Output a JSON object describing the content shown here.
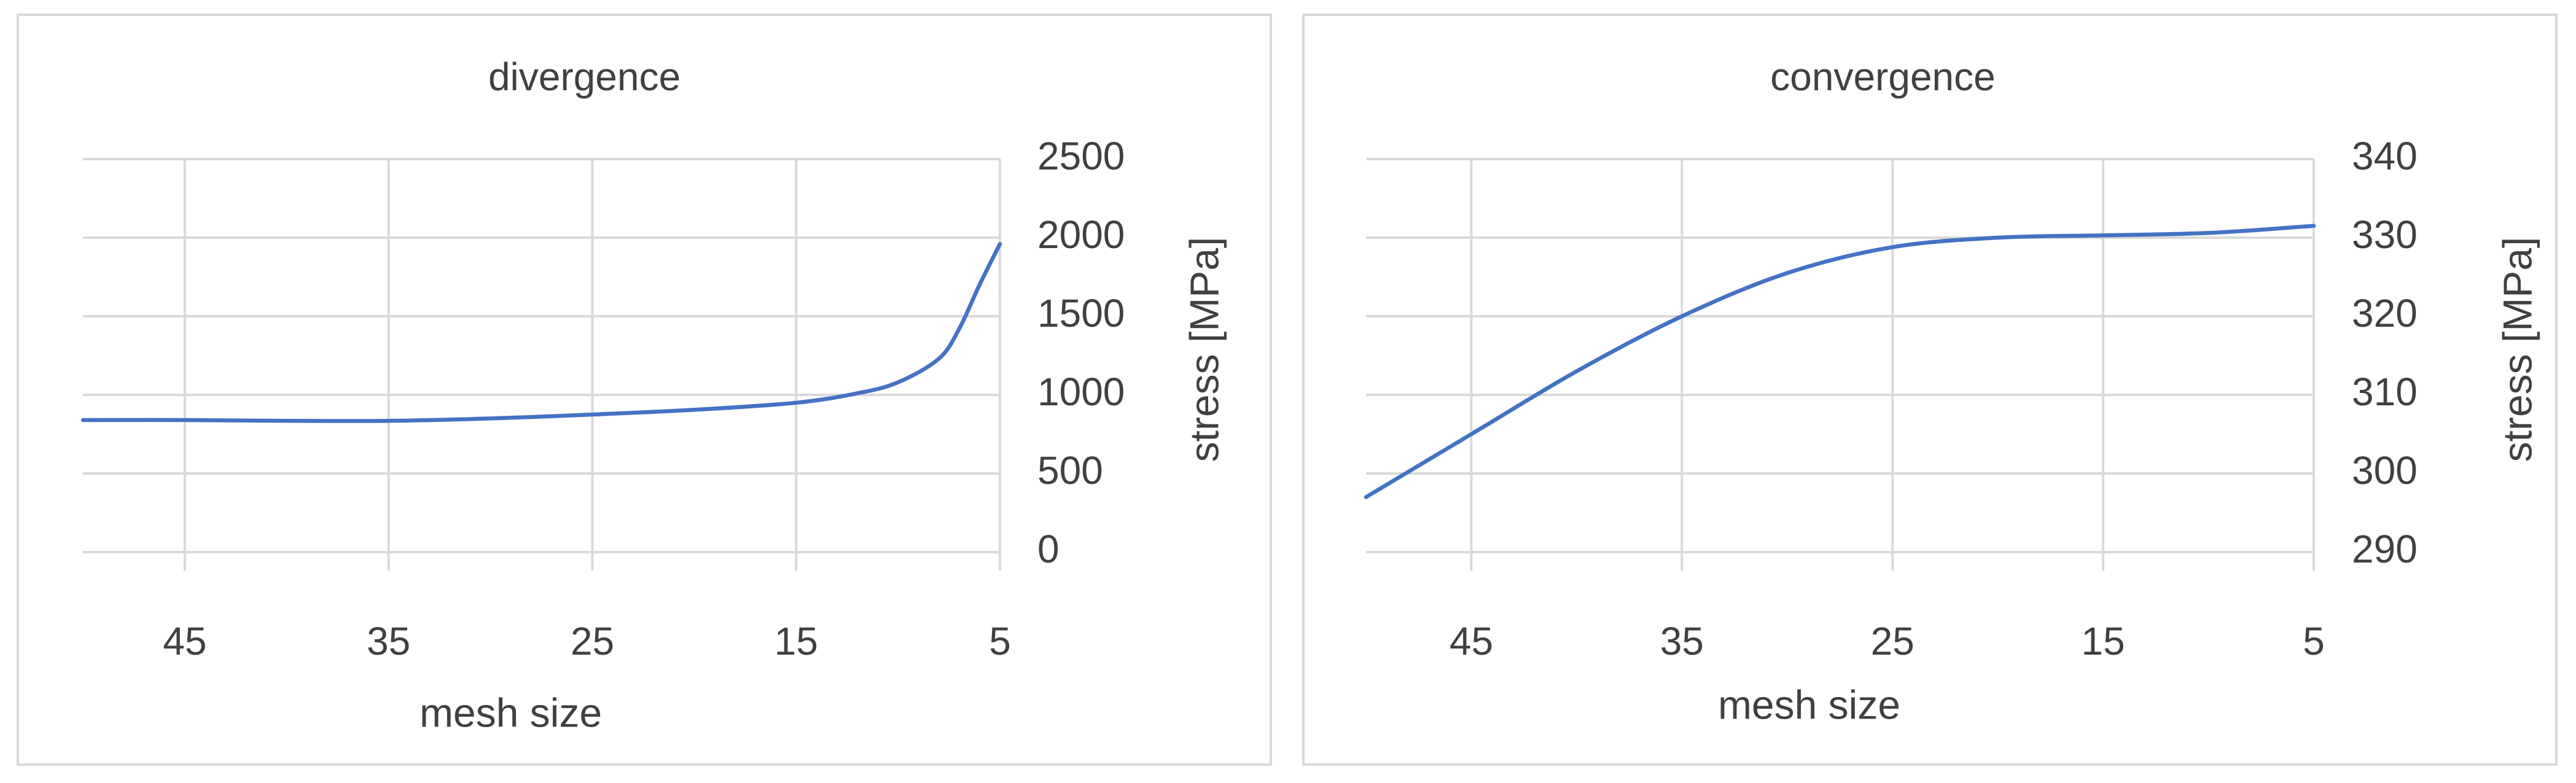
{
  "chart_data": [
    {
      "type": "line",
      "title": "divergence",
      "xlabel": "mesh size",
      "ylabel": "stress [MPa]",
      "x_axis_reversed": true,
      "xlim": [
        50,
        5
      ],
      "xticks": [
        45,
        35,
        25,
        15,
        5
      ],
      "ylim": [
        0,
        2500
      ],
      "yticks": [
        0,
        500,
        1000,
        1500,
        2000,
        2500
      ],
      "y_axis_position": "right",
      "grid": true,
      "legend": "none",
      "series": [
        {
          "color": "#4472c4",
          "x": [
            50,
            45,
            40,
            35,
            30,
            25,
            20,
            15,
            12,
            10,
            8,
            7,
            6,
            5
          ],
          "values": [
            840,
            840,
            835,
            835,
            850,
            875,
            905,
            950,
            1010,
            1080,
            1230,
            1420,
            1700,
            1960
          ]
        }
      ]
    },
    {
      "type": "line",
      "title": "convergence",
      "xlabel": "mesh size",
      "ylabel": "stress [MPa]",
      "x_axis_reversed": true,
      "xlim": [
        50,
        5
      ],
      "xticks": [
        45,
        35,
        25,
        15,
        5
      ],
      "ylim": [
        290,
        340
      ],
      "yticks": [
        290,
        300,
        310,
        320,
        330,
        340
      ],
      "y_axis_position": "right",
      "grid": true,
      "legend": "none",
      "series": [
        {
          "color": "#4472c4",
          "x": [
            50,
            45,
            40,
            35,
            30,
            25,
            20,
            15,
            10,
            5
          ],
          "values": [
            297,
            305,
            313,
            320,
            325.5,
            328.8,
            330,
            330.3,
            330.6,
            331.5
          ]
        }
      ]
    }
  ]
}
